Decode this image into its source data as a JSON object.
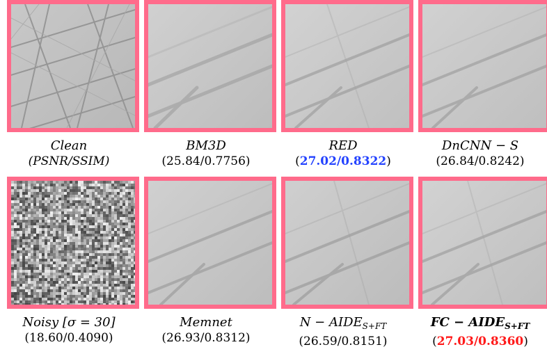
{
  "figure": {
    "row1": [
      {
        "name": "Clean",
        "metric": "(PSNR/SSIM)",
        "kind": "clean",
        "highlight": "none"
      },
      {
        "name": "BM3D",
        "metric": "(25.84/0.7756)",
        "kind": "smooth",
        "highlight": "none"
      },
      {
        "name": "RED",
        "metric": "27.02/0.8322",
        "kind": "smooth",
        "highlight": "blue"
      },
      {
        "name": "DnCNN − S",
        "metric": "(26.84/0.8242)",
        "kind": "smooth",
        "highlight": "none"
      }
    ],
    "row2": [
      {
        "name": "Noisy [σ = 30]",
        "metric": "(18.60/0.4090)",
        "kind": "noisy",
        "highlight": "none"
      },
      {
        "name": "Memnet",
        "metric": "(26.93/0.8312)",
        "kind": "smooth",
        "highlight": "none"
      },
      {
        "name": "N − AIDE",
        "sub": "S+FT",
        "metric": "(26.59/0.8151)",
        "kind": "smooth",
        "highlight": "none"
      },
      {
        "name": "FC − AIDE",
        "sub": "S+FT",
        "metric": "27.03/0.8360",
        "kind": "smooth",
        "highlight": "red"
      }
    ]
  },
  "colors": {
    "border": "#ff6b8b",
    "best": "#ff1a1a",
    "second": "#2342ff"
  }
}
